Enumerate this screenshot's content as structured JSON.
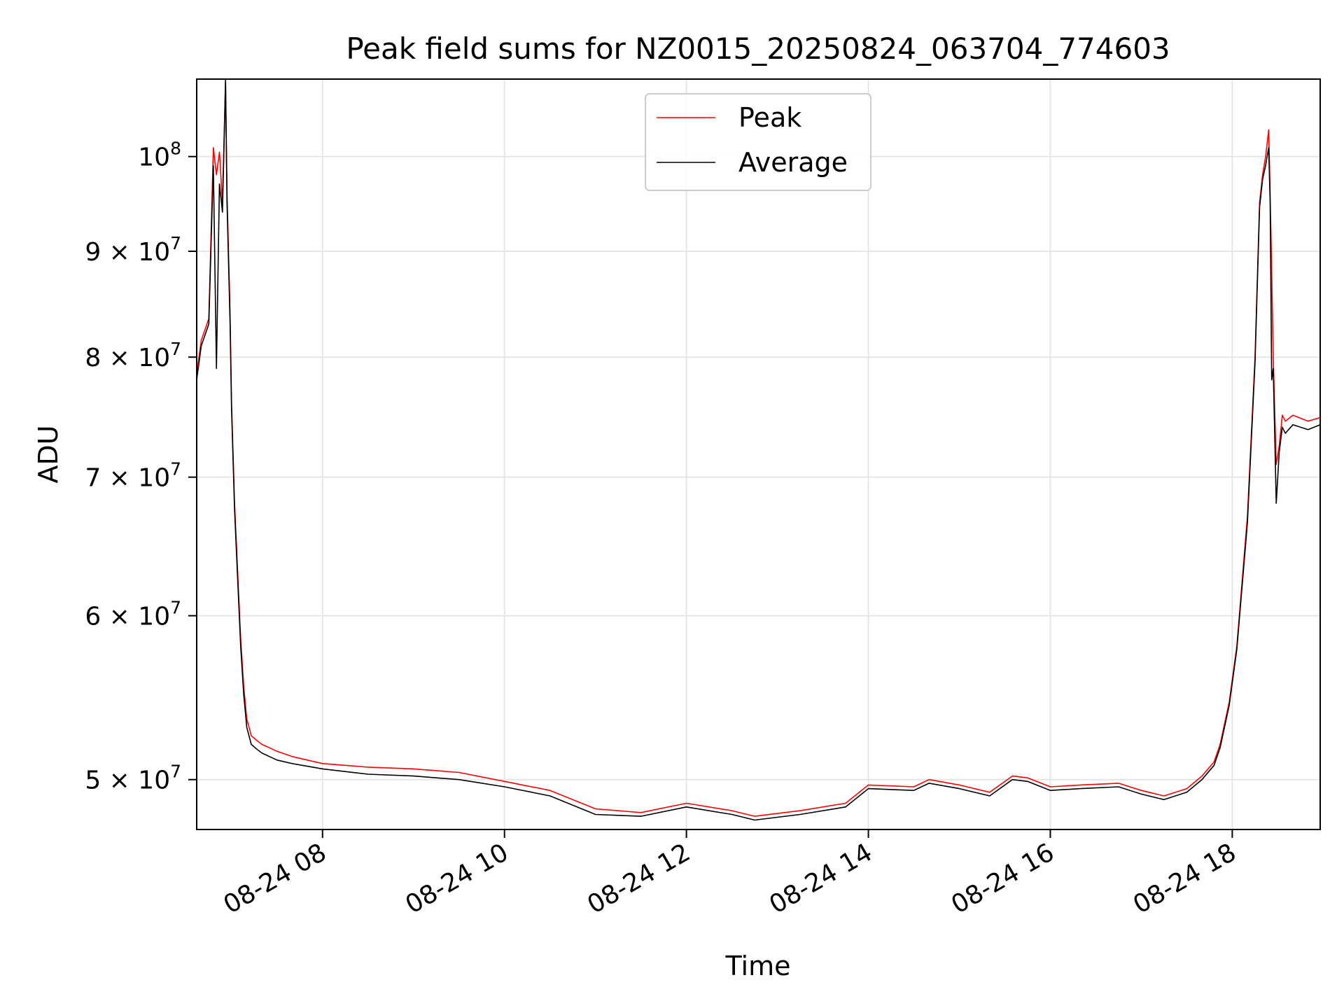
{
  "chart_data": {
    "type": "line",
    "title": "Peak field sums for NZ0015_20250824_063704_774603",
    "xlabel": "Time",
    "ylabel": "ADU",
    "yscale": "log",
    "grid": true,
    "legend_position": "top-center",
    "xlim": [
      "08-24 06:37",
      "08-24 18:58"
    ],
    "ylim": [
      47300000,
      109000000
    ],
    "x_ticks": [
      "08-24 08",
      "08-24 10",
      "08-24 12",
      "08-24 14",
      "08-24 16",
      "08-24 18"
    ],
    "y_ticks": [
      {
        "value": 50000000,
        "mantissa": "5",
        "exp": "7"
      },
      {
        "value": 60000000,
        "mantissa": "6",
        "exp": "7"
      },
      {
        "value": 70000000,
        "mantissa": "7",
        "exp": "7"
      },
      {
        "value": 80000000,
        "mantissa": "8",
        "exp": "7"
      },
      {
        "value": 90000000,
        "mantissa": "9",
        "exp": "7"
      },
      {
        "value": 100000000,
        "mantissa": "",
        "exp": "8"
      }
    ],
    "series": [
      {
        "name": "Peak",
        "color": "#ff0000",
        "x": [
          "08-24 06:37",
          "08-24 06:40",
          "08-24 06:45",
          "08-24 06:48",
          "08-24 06:50",
          "08-24 06:52",
          "08-24 06:54",
          "08-24 06:56",
          "08-24 06:57",
          "08-24 06:59",
          "08-24 07:00",
          "08-24 07:02",
          "08-24 07:04",
          "08-24 07:06",
          "08-24 07:08",
          "08-24 07:10",
          "08-24 07:13",
          "08-24 07:17",
          "08-24 07:20",
          "08-24 07:25",
          "08-24 07:30",
          "08-24 07:40",
          "08-24 08:00",
          "08-24 08:30",
          "08-24 09:00",
          "08-24 09:30",
          "08-24 10:00",
          "08-24 10:30",
          "08-24 11:00",
          "08-24 11:30",
          "08-24 12:00",
          "08-24 12:30",
          "08-24 12:45",
          "08-24 13:15",
          "08-24 13:45",
          "08-24 14:00",
          "08-24 14:30",
          "08-24 14:40",
          "08-24 15:00",
          "08-24 15:20",
          "08-24 15:35",
          "08-24 15:45",
          "08-24 16:00",
          "08-24 16:20",
          "08-24 16:45",
          "08-24 17:00",
          "08-24 17:15",
          "08-24 17:30",
          "08-24 17:40",
          "08-24 17:48",
          "08-24 17:52",
          "08-24 17:58",
          "08-24 18:03",
          "08-24 18:10",
          "08-24 18:15",
          "08-24 18:18",
          "08-24 18:20",
          "08-24 18:22",
          "08-24 18:24",
          "08-24 18:25",
          "08-24 18:26",
          "08-24 18:27",
          "08-24 18:29",
          "08-24 18:31",
          "08-24 18:33",
          "08-24 18:35",
          "08-24 18:40",
          "08-24 18:50",
          "08-24 18:58"
        ],
        "y": [
          78500000,
          81500000,
          83500000,
          101000000,
          98000000,
          100500000,
          95000000,
          108500000,
          96000000,
          84000000,
          76000000,
          68000000,
          63000000,
          58500000,
          55500000,
          53500000,
          52500000,
          52200000,
          52000000,
          51800000,
          51600000,
          51300000,
          50900000,
          50700000,
          50600000,
          50400000,
          49900000,
          49400000,
          48400000,
          48200000,
          48700000,
          48300000,
          48000000,
          48300000,
          48700000,
          49700000,
          49600000,
          50000000,
          49700000,
          49300000,
          50200000,
          50100000,
          49600000,
          49700000,
          49800000,
          49400000,
          49100000,
          49500000,
          50200000,
          51000000,
          52000000,
          54500000,
          58000000,
          67000000,
          80000000,
          95000000,
          98000000,
          100000000,
          103000000,
          96000000,
          88000000,
          80000000,
          71000000,
          72500000,
          75000000,
          74500000,
          75000000,
          74500000,
          74800000
        ]
      },
      {
        "name": "Average",
        "color": "#000000",
        "x": [
          "08-24 06:37",
          "08-24 06:40",
          "08-24 06:45",
          "08-24 06:48",
          "08-24 06:50",
          "08-24 06:52",
          "08-24 06:54",
          "08-24 06:56",
          "08-24 06:57",
          "08-24 06:59",
          "08-24 07:00",
          "08-24 07:02",
          "08-24 07:04",
          "08-24 07:06",
          "08-24 07:08",
          "08-24 07:10",
          "08-24 07:13",
          "08-24 07:17",
          "08-24 07:20",
          "08-24 07:25",
          "08-24 07:30",
          "08-24 07:40",
          "08-24 08:00",
          "08-24 08:30",
          "08-24 09:00",
          "08-24 09:30",
          "08-24 10:00",
          "08-24 10:30",
          "08-24 11:00",
          "08-24 11:30",
          "08-24 12:00",
          "08-24 12:30",
          "08-24 12:45",
          "08-24 13:15",
          "08-24 13:45",
          "08-24 14:00",
          "08-24 14:30",
          "08-24 14:40",
          "08-24 15:00",
          "08-24 15:20",
          "08-24 15:35",
          "08-24 15:45",
          "08-24 16:00",
          "08-24 16:20",
          "08-24 16:45",
          "08-24 17:00",
          "08-24 17:15",
          "08-24 17:30",
          "08-24 17:40",
          "08-24 17:48",
          "08-24 17:52",
          "08-24 17:58",
          "08-24 18:03",
          "08-24 18:10",
          "08-24 18:15",
          "08-24 18:18",
          "08-24 18:20",
          "08-24 18:22",
          "08-24 18:24",
          "08-24 18:25",
          "08-24 18:26",
          "08-24 18:27",
          "08-24 18:29",
          "08-24 18:31",
          "08-24 18:33",
          "08-24 18:35",
          "08-24 18:40",
          "08-24 18:50",
          "08-24 18:58"
        ],
        "y": [
          78000000,
          81000000,
          83000000,
          99000000,
          79000000,
          97000000,
          94000000,
          109000000,
          95000000,
          83000000,
          75500000,
          67500000,
          62500000,
          58000000,
          55000000,
          53000000,
          52000000,
          51700000,
          51500000,
          51300000,
          51100000,
          50900000,
          50600000,
          50300000,
          50200000,
          50000000,
          49600000,
          49100000,
          48100000,
          48000000,
          48500000,
          48100000,
          47800000,
          48100000,
          48500000,
          49500000,
          49400000,
          49800000,
          49500000,
          49100000,
          50000000,
          49900000,
          49400000,
          49500000,
          49600000,
          49200000,
          48900000,
          49300000,
          50000000,
          50800000,
          51800000,
          54300000,
          57800000,
          66500000,
          79500000,
          94500000,
          97500000,
          99000000,
          101000000,
          95000000,
          78000000,
          79000000,
          68000000,
          72000000,
          74000000,
          73500000,
          74200000,
          73800000,
          74200000
        ]
      }
    ]
  }
}
